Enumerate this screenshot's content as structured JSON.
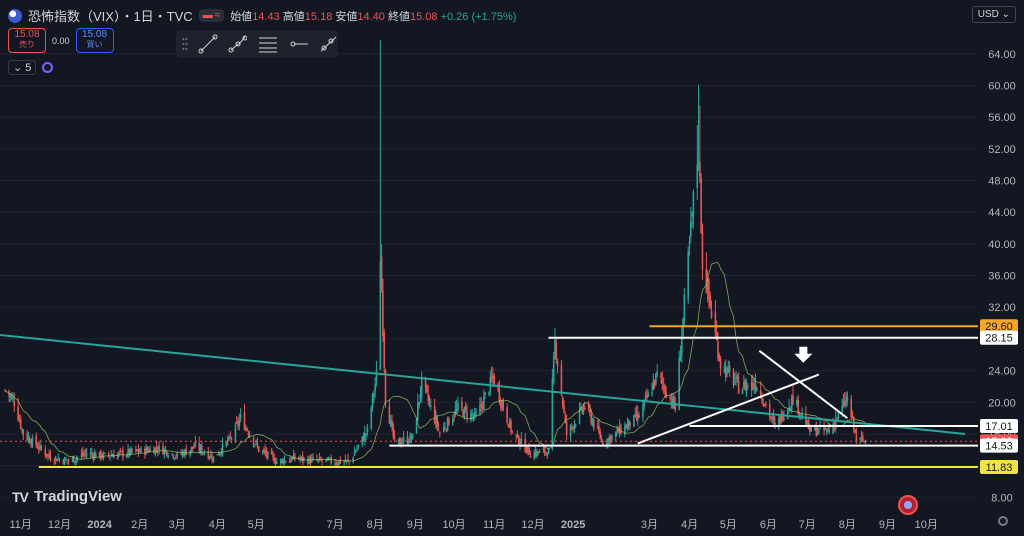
{
  "header": {
    "title": "恐怖指数（VIX）・1日・TVC",
    "ohlc": {
      "open_label": "始値",
      "open": "14.43",
      "high_label": "高値",
      "high": "15.18",
      "low_label": "安値",
      "low": "14.40",
      "close_label": "終値",
      "close": "15.08",
      "change": "+0.26 (+1.75%)"
    },
    "mini_icons": [
      "minus-icon",
      "waves-icon"
    ]
  },
  "trade": {
    "sell_price": "15.08",
    "sell_label": "売り",
    "spread": "0.00",
    "buy_price": "15.08",
    "buy_label": "買い"
  },
  "indicator": {
    "count": "5"
  },
  "currency": "USD",
  "drawing_toolbar": {
    "tools": [
      "trend-line-icon",
      "multi-point-line-icon",
      "horizontal-lines-icon",
      "horizontal-ray-icon",
      "ray-line-icon"
    ]
  },
  "brand": {
    "name": "TradingView",
    "logo_text": "TV"
  },
  "colors": {
    "background": "#131722",
    "bull": "#26a69a",
    "bear": "#ef5350",
    "trend": "#26a69a",
    "orange": "#f5a623",
    "yellow": "#f0e442"
  },
  "chart_data": {
    "type": "candlestick",
    "title": "恐怖指数（VIX）・1日・TVC",
    "x_ticks": [
      "11月",
      "12月",
      "2024",
      "2月",
      "3月",
      "4月",
      "5月",
      "7月",
      "8月",
      "9月",
      "10月",
      "11月",
      "12月",
      "2025",
      "3月",
      "4月",
      "5月",
      "6月",
      "7月",
      "8月",
      "9月",
      "10月"
    ],
    "y_ticks": [
      8,
      12,
      16,
      20,
      24,
      28,
      32,
      36,
      40,
      44,
      48,
      52,
      56,
      60,
      64
    ],
    "ylim": [
      6.4,
      67
    ],
    "close_series_approx": [
      {
        "t": "2023-10-20",
        "v": 21.5
      },
      {
        "t": "2023-10-27",
        "v": 20.0
      },
      {
        "t": "2023-11-03",
        "v": 16.0
      },
      {
        "t": "2023-11-10",
        "v": 15.0
      },
      {
        "t": "2023-11-24",
        "v": 13.0
      },
      {
        "t": "2023-12-08",
        "v": 12.6
      },
      {
        "t": "2023-12-22",
        "v": 13.5
      },
      {
        "t": "2024-01-05",
        "v": 13.2
      },
      {
        "t": "2024-01-19",
        "v": 13.5
      },
      {
        "t": "2024-02-02",
        "v": 13.8
      },
      {
        "t": "2024-02-16",
        "v": 14.2
      },
      {
        "t": "2024-03-01",
        "v": 13.2
      },
      {
        "t": "2024-03-15",
        "v": 14.4
      },
      {
        "t": "2024-03-29",
        "v": 13.0
      },
      {
        "t": "2024-04-12",
        "v": 15.5
      },
      {
        "t": "2024-04-19",
        "v": 18.0
      },
      {
        "t": "2024-05-03",
        "v": 14.0
      },
      {
        "t": "2024-05-17",
        "v": 12.5
      },
      {
        "t": "2024-05-31",
        "v": 12.9
      },
      {
        "t": "2024-06-14",
        "v": 12.6
      },
      {
        "t": "2024-06-28",
        "v": 12.5
      },
      {
        "t": "2024-07-12",
        "v": 12.5
      },
      {
        "t": "2024-07-26",
        "v": 16.4
      },
      {
        "t": "2024-08-02",
        "v": 23.4
      },
      {
        "t": "2024-08-05",
        "v": 38.6
      },
      {
        "t": "2024-08-09",
        "v": 20.4
      },
      {
        "t": "2024-08-16",
        "v": 14.8
      },
      {
        "t": "2024-08-30",
        "v": 15.5
      },
      {
        "t": "2024-09-06",
        "v": 22.4
      },
      {
        "t": "2024-09-20",
        "v": 16.1
      },
      {
        "t": "2024-10-04",
        "v": 19.2
      },
      {
        "t": "2024-10-18",
        "v": 18.0
      },
      {
        "t": "2024-10-31",
        "v": 23.1
      },
      {
        "t": "2024-11-15",
        "v": 16.1
      },
      {
        "t": "2024-11-29",
        "v": 13.5
      },
      {
        "t": "2024-12-13",
        "v": 13.8
      },
      {
        "t": "2024-12-18",
        "v": 27.6
      },
      {
        "t": "2024-12-27",
        "v": 15.9
      },
      {
        "t": "2025-01-10",
        "v": 19.5
      },
      {
        "t": "2025-01-24",
        "v": 14.9
      },
      {
        "t": "2025-02-07",
        "v": 16.5
      },
      {
        "t": "2025-02-21",
        "v": 18.2
      },
      {
        "t": "2025-03-07",
        "v": 23.4
      },
      {
        "t": "2025-03-21",
        "v": 19.3
      },
      {
        "t": "2025-04-04",
        "v": 45.3
      },
      {
        "t": "2025-04-08",
        "v": 52.3
      },
      {
        "t": "2025-04-11",
        "v": 37.6
      },
      {
        "t": "2025-04-25",
        "v": 24.8
      },
      {
        "t": "2025-05-09",
        "v": 21.9
      },
      {
        "t": "2025-05-23",
        "v": 22.3
      },
      {
        "t": "2025-06-06",
        "v": 16.8
      },
      {
        "t": "2025-06-20",
        "v": 20.6
      },
      {
        "t": "2025-07-03",
        "v": 16.4
      },
      {
        "t": "2025-07-18",
        "v": 16.4
      },
      {
        "t": "2025-08-01",
        "v": 20.4
      },
      {
        "t": "2025-08-08",
        "v": 15.2
      },
      {
        "t": "2025-08-15",
        "v": 15.08
      }
    ],
    "price_labels": [
      {
        "value": "29.60",
        "color": "#f5a623"
      },
      {
        "value": "28.15",
        "color": "#ffffff"
      },
      {
        "value": "17.01",
        "color": "#ffffff"
      },
      {
        "value": "15.08",
        "color": "#ef5350"
      },
      {
        "value": "14.53",
        "color": "#ffffff"
      },
      {
        "value": "11.83",
        "color": "#f0e442"
      }
    ],
    "drawings": [
      {
        "type": "trendline",
        "color": "#26a69a",
        "from": {
          "t": "2023-10-16",
          "v": 28.5
        },
        "to": {
          "t": "2025-10-31",
          "v": 16.0
        }
      },
      {
        "type": "hline",
        "color": "#f5a623",
        "value": 29.6,
        "from": "2025-03-01"
      },
      {
        "type": "hline",
        "color": "#ffffff",
        "value": 28.15,
        "from": "2024-12-13"
      },
      {
        "type": "hline",
        "color": "#ffffff",
        "value": 17.01,
        "from": "2025-04-01"
      },
      {
        "type": "hline",
        "color": "#ffffff",
        "value": 14.53,
        "from": "2024-08-12"
      },
      {
        "type": "hline",
        "color": "#f0e442",
        "value": 11.83,
        "from": "2023-11-15"
      },
      {
        "type": "line",
        "color": "#ffffff",
        "from": {
          "t": "2025-02-20",
          "v": 14.8
        },
        "to": {
          "t": "2025-07-10",
          "v": 23.5
        }
      },
      {
        "type": "line",
        "color": "#ffffff",
        "from": {
          "t": "2025-05-25",
          "v": 26.5
        },
        "to": {
          "t": "2025-08-01",
          "v": 18.0
        }
      },
      {
        "type": "arrow",
        "color": "#ffffff",
        "direction": "down",
        "at": {
          "t": "2025-06-28",
          "v": 25.5
        }
      }
    ]
  }
}
